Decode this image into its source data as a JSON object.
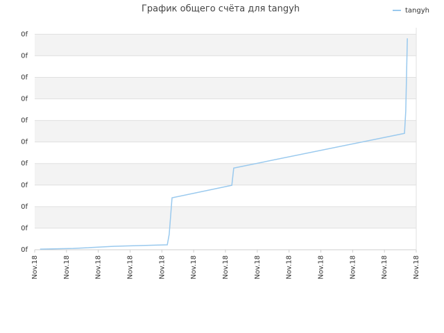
{
  "chart_data": {
    "type": "line",
    "title": "График общего счёта для tangyh",
    "x": [
      0.17,
      1.2,
      2.51,
      4.17,
      4.23,
      4.32,
      6.2,
      6.26,
      11.63,
      11.67,
      11.72
    ],
    "series": [
      {
        "name": "tangyh",
        "color": "#99c9ee",
        "values": [
          0.03,
          0.06,
          0.16,
          0.23,
          0.71,
          2.41,
          2.99,
          3.79,
          5.4,
          6.43,
          9.81
        ]
      }
    ],
    "xlim": [
      0,
      12
    ],
    "xticks": [
      {
        "value": 0,
        "label": "Nov.18"
      },
      {
        "value": 1,
        "label": "Nov.18"
      },
      {
        "value": 2,
        "label": "Nov.18"
      },
      {
        "value": 3,
        "label": "Nov.18"
      },
      {
        "value": 4,
        "label": "Nov.18"
      },
      {
        "value": 5,
        "label": "Nov.18"
      },
      {
        "value": 6,
        "label": "Nov.18"
      },
      {
        "value": 7,
        "label": "Nov.18"
      },
      {
        "value": 8,
        "label": "Nov.18"
      },
      {
        "value": 9,
        "label": "Nov.18"
      },
      {
        "value": 10,
        "label": "Nov.18"
      },
      {
        "value": 11,
        "label": "Nov.18"
      },
      {
        "value": 12,
        "label": "Nov.18"
      }
    ],
    "ylim": [
      0,
      10.3
    ],
    "yticks": [
      {
        "value": 0,
        "label": "0f"
      },
      {
        "value": 1,
        "label": "0f"
      },
      {
        "value": 2,
        "label": "0f"
      },
      {
        "value": 3,
        "label": "0f"
      },
      {
        "value": 4,
        "label": "0f"
      },
      {
        "value": 5,
        "label": "0f"
      },
      {
        "value": 6,
        "label": "0f"
      },
      {
        "value": 7,
        "label": "0f"
      },
      {
        "value": 8,
        "label": "0f"
      },
      {
        "value": 9,
        "label": "0f"
      },
      {
        "value": 10,
        "label": "0f"
      }
    ],
    "grid": true,
    "legend": "top-right"
  }
}
